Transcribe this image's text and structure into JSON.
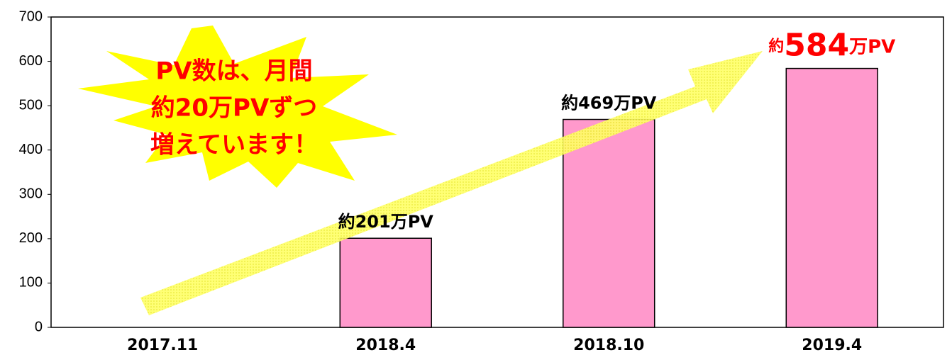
{
  "chart_data": {
    "type": "bar",
    "categories": [
      "2017.11",
      "2018.4",
      "2018.10",
      "2019.4"
    ],
    "values": [
      null,
      201,
      469,
      584
    ],
    "value_labels": [
      null,
      "約201万PV",
      "約469万PV",
      "約584万PV"
    ],
    "color": "#ff99cc",
    "ylim": [
      0,
      700
    ],
    "yticks": [
      0,
      100,
      200,
      300,
      400,
      500,
      600,
      700
    ],
    "grid": false,
    "annotations": [
      "PV数は、月間",
      "約20万PVずつ",
      "増えています！"
    ]
  }
}
